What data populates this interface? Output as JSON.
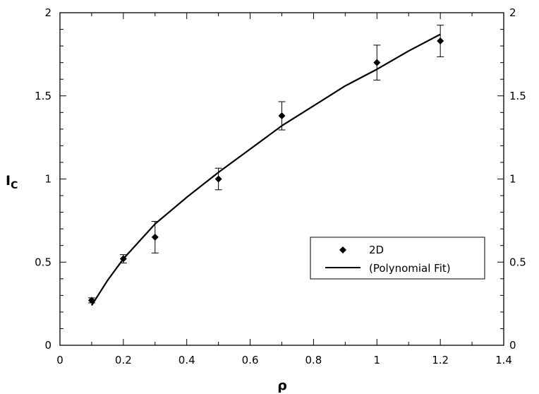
{
  "chart_data": {
    "type": "scatter",
    "xlabel": "ρ",
    "ylabel_main": "I",
    "ylabel_sub": "C",
    "xlim": [
      0,
      1.4
    ],
    "ylim": [
      0,
      2
    ],
    "x_ticks": [
      "0",
      "0.2",
      "0.4",
      "0.6",
      "0.8",
      "1",
      "1.2",
      "1.4"
    ],
    "y_ticks": [
      "0",
      "0.5",
      "1",
      "1.5",
      "2"
    ],
    "grid": false,
    "legend_position": "right-middle",
    "series": [
      {
        "name": "2D",
        "style": "marker",
        "marker": "diamond",
        "color": "#000000",
        "x": [
          0.1,
          0.2,
          0.3,
          0.5,
          0.7,
          1.0,
          1.2
        ],
        "y": [
          0.27,
          0.52,
          0.65,
          1.0,
          1.38,
          1.7,
          1.83
        ],
        "error": [
          0.015,
          0.025,
          0.095,
          0.065,
          0.085,
          0.105,
          0.095
        ]
      },
      {
        "name": "(Polynomial Fit)",
        "style": "line",
        "color": "#000000",
        "x": [
          0.1,
          0.15,
          0.2,
          0.3,
          0.4,
          0.5,
          0.6,
          0.7,
          0.8,
          0.9,
          1.0,
          1.1,
          1.2
        ],
        "y": [
          0.24,
          0.39,
          0.52,
          0.73,
          0.89,
          1.04,
          1.18,
          1.32,
          1.44,
          1.56,
          1.66,
          1.77,
          1.87
        ]
      }
    ]
  }
}
